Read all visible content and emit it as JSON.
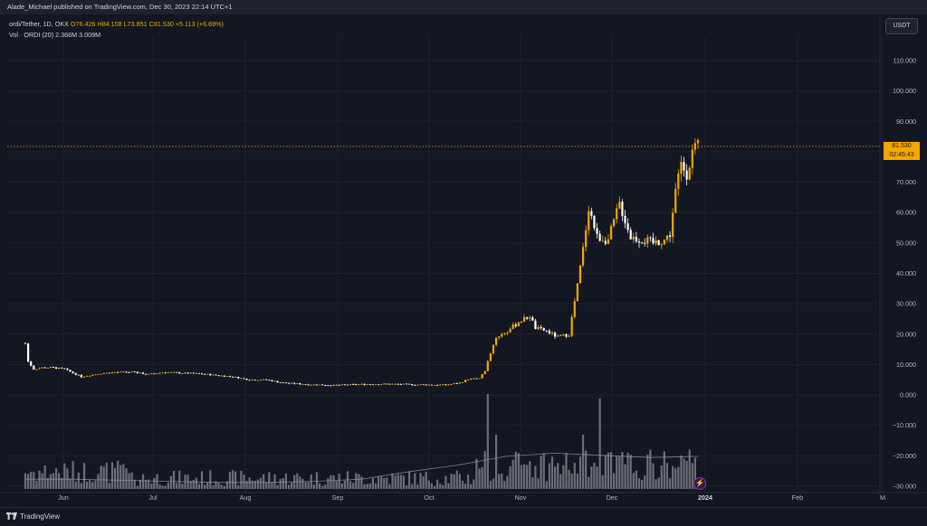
{
  "header": {
    "publisher_line": "Alade_Michael published on TradingView.com, Dec 30, 2023 22:14 UTC+1"
  },
  "legend": {
    "symbol": "ordi/Tether, 1D, OKX",
    "open": "O76.426",
    "high": "H84.108",
    "low": "L73.851",
    "close": "C81.530",
    "change": "+5.113 (+6.69%)",
    "volume_label": "Vol · ORDI (20)",
    "volume_value": "2.366M",
    "volume_ma": "3.009M"
  },
  "currency_button": "USDT",
  "last_price": {
    "price": "81.530",
    "countdown": "02:45:43"
  },
  "footer": {
    "brand": "TradingView"
  },
  "colors": {
    "up": "#f7a600",
    "down": "#ffffff",
    "bg": "#131722",
    "grid": "#1f2330",
    "volume": "#8a8d96"
  },
  "chart_data": {
    "type": "candlestick",
    "y_ticks": [
      "110.000",
      "100.000",
      "90.000",
      "80.000",
      "70.000",
      "60.000",
      "50.000",
      "40.000",
      "30.000",
      "20.000",
      "10.000",
      "0.000",
      "−10.000",
      "−20.000",
      "−30.000"
    ],
    "x_ticks": [
      "Jun",
      "Jul",
      "Aug",
      "Sep",
      "Oct",
      "Nov",
      "Dec",
      "2024",
      "Feb",
      "M"
    ],
    "ylim": [
      -30,
      118
    ],
    "price_points": [
      [
        0,
        17
      ],
      [
        1,
        11
      ],
      [
        3,
        8.5
      ],
      [
        6,
        9
      ],
      [
        10,
        9
      ],
      [
        14,
        8.5
      ],
      [
        20,
        6
      ],
      [
        26,
        7
      ],
      [
        32,
        7.5
      ],
      [
        38,
        7.5
      ],
      [
        44,
        6.8
      ],
      [
        50,
        7.5
      ],
      [
        56,
        7.2
      ],
      [
        62,
        7
      ],
      [
        68,
        6.5
      ],
      [
        74,
        6
      ],
      [
        80,
        5
      ],
      [
        86,
        5
      ],
      [
        92,
        4
      ],
      [
        100,
        3.5
      ],
      [
        110,
        3.2
      ],
      [
        120,
        3.5
      ],
      [
        130,
        3.6
      ],
      [
        140,
        3.4
      ],
      [
        150,
        3.3
      ],
      [
        155,
        4
      ],
      [
        158,
        5.2
      ],
      [
        162,
        5.5
      ],
      [
        164,
        8
      ],
      [
        166,
        14
      ],
      [
        168,
        19
      ],
      [
        172,
        21
      ],
      [
        176,
        24
      ],
      [
        180,
        26
      ],
      [
        182,
        22
      ],
      [
        186,
        21
      ],
      [
        190,
        19
      ],
      [
        194,
        20
      ],
      [
        197,
        36
      ],
      [
        199,
        48
      ],
      [
        201,
        62
      ],
      [
        204,
        52
      ],
      [
        208,
        51
      ],
      [
        212,
        63
      ],
      [
        216,
        52
      ],
      [
        220,
        51
      ],
      [
        224,
        50
      ],
      [
        228,
        51
      ],
      [
        230,
        53
      ],
      [
        232,
        67
      ],
      [
        234,
        76
      ],
      [
        236,
        73
      ],
      [
        238,
        80
      ],
      [
        240,
        81.53
      ]
    ],
    "volume_ma": [
      0.9,
      0.9,
      0.8,
      0.7,
      0.6,
      0.6,
      0.7,
      0.9,
      1.6,
      2.2,
      3.0,
      3.3,
      3.1,
      2.9,
      3.0
    ]
  }
}
